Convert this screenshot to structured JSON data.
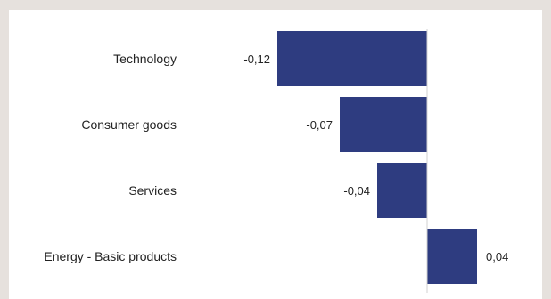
{
  "chart_data": {
    "type": "bar",
    "orientation": "horizontal",
    "categories": [
      "Technology",
      "Consumer goods",
      "Services",
      "Energy - Basic products"
    ],
    "values": [
      -0.12,
      -0.07,
      -0.04,
      0.04
    ],
    "value_labels": [
      "-0,12",
      "-0,07",
      "-0,04",
      "0,04"
    ],
    "title": "",
    "xlabel": "",
    "ylabel": "",
    "xlim": [
      -0.14,
      0.1
    ],
    "grid": false,
    "legend": "none",
    "bar_color": "#2e3c80",
    "axis_color": "#d0d0d0"
  }
}
